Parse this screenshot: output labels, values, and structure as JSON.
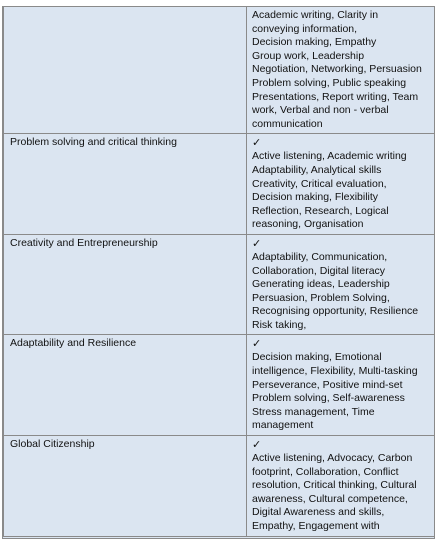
{
  "rows": [
    {
      "attribute": "",
      "checked": false,
      "skills": [
        "Academic writing, Clarity in",
        "conveying information,",
        "Decision making, Empathy",
        "Group work, Leadership",
        "Negotiation, Networking, Persuasion",
        "Problem solving, Public speaking",
        "Presentations, Report writing, Team",
        "work, Verbal and non - verbal",
        "communication"
      ]
    },
    {
      "attribute": "Problem solving and critical thinking",
      "checked": true,
      "skills": [
        "Active listening, Academic writing",
        "Adaptability, Analytical skills",
        "Creativity, Critical evaluation,",
        "Decision making, Flexibility",
        "Reflection, Research, Logical",
        "reasoning, Organisation"
      ]
    },
    {
      "attribute": "Creativity and Entrepreneurship",
      "checked": true,
      "skills": [
        "Adaptability, Communication,",
        "Collaboration, Digital literacy",
        "Generating ideas, Leadership",
        "Persuasion, Problem Solving,",
        "Recognising opportunity, Resilience",
        "Risk taking,"
      ]
    },
    {
      "attribute": "Adaptability and Resilience",
      "checked": true,
      "skills": [
        "Decision making, Emotional",
        "intelligence, Flexibility, Multi-tasking",
        "Perseverance, Positive mind-set",
        "Problem solving, Self-awareness",
        "Stress management, Time",
        "management"
      ]
    },
    {
      "attribute": "Global Citizenship",
      "checked": true,
      "skills": [
        "Active listening, Advocacy, Carbon",
        "footprint, Collaboration, Conflict",
        "resolution, Critical thinking, Cultural",
        "awareness, Cultural competence,",
        "Digital Awareness and skills,",
        "Empathy, Engagement with"
      ]
    }
  ],
  "check_glyph": "✓"
}
